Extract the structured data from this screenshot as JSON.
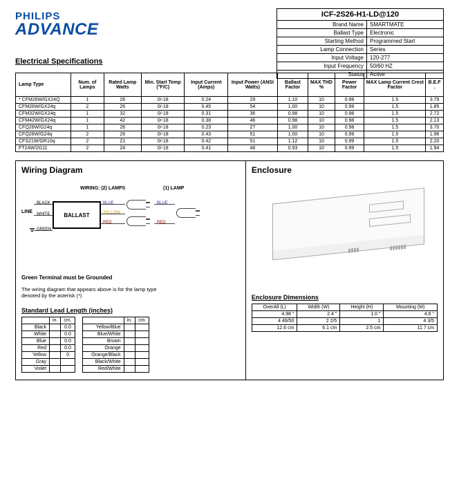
{
  "brand": {
    "top": "PHILIPS",
    "bottom": "ADVANCE"
  },
  "section_title": "Electrical Specifications",
  "model": "ICF-2S26-H1-LD@120",
  "info": [
    {
      "k": "Brand Name",
      "v": "SMARTMATE"
    },
    {
      "k": "Ballast Type",
      "v": "Electronic"
    },
    {
      "k": "Starting Method",
      "v": "Programmed Start"
    },
    {
      "k": "Lamp Connection",
      "v": "Series"
    },
    {
      "k": "Input Voltage",
      "v": "120-277"
    },
    {
      "k": "Input Frequency",
      "v": "50/60 HZ"
    },
    {
      "k": "Status",
      "v": "Active"
    }
  ],
  "spec": {
    "cols": [
      "Lamp Type",
      "Num. of Lamps",
      "Rated Lamp Watts",
      "Min. Start Temp (°F/C)",
      "Input Current (Amps)",
      "Input Power (ANSI Watts)",
      "Ballast Factor",
      "MAX THD %",
      "Power Factor",
      "MAX Lamp Current Crest Factor",
      "B.E.F ."
    ],
    "rows": [
      [
        "* CFM26W/GX24Q",
        "1",
        "26",
        "0/-18",
        "0.24",
        "29",
        "1.10",
        "10",
        "0.98",
        "1.5",
        "3.79"
      ],
      [
        "CFM26W/GX24q",
        "2",
        "26",
        "0/-18",
        "0.45",
        "54",
        "1.00",
        "10",
        "0.99",
        "1.5",
        "1.85"
      ],
      [
        "CFM32W/GX24q",
        "1",
        "32",
        "0/-18",
        "0.31",
        "36",
        "0.98",
        "10",
        "0.98",
        "1.5",
        "2.72"
      ],
      [
        "CFM42W/GX24q",
        "1",
        "42",
        "0/-18",
        "0.38",
        "46",
        "0.98",
        "10",
        "0.98",
        "1.5",
        "2.13"
      ],
      [
        "CFQ26W/G24q",
        "1",
        "26",
        "0/-18",
        "0.23",
        "27",
        "1.00",
        "10",
        "0.98",
        "1.5",
        "3.70"
      ],
      [
        "CFQ26W/G24q",
        "2",
        "26",
        "0/-18",
        "0.43",
        "51",
        "1.00",
        "10",
        "0.99",
        "1.5",
        "1.96"
      ],
      [
        "CFS21W/GR10q",
        "2",
        "21",
        "0/-18",
        "0.42",
        "51",
        "1.12",
        "10",
        "0.99",
        "1.5",
        "2.20"
      ],
      [
        "FT24W/2G11",
        "2",
        "24",
        "0/-18",
        "0.41",
        "48",
        "0.93",
        "10",
        "0.99",
        "1.5",
        "1.94"
      ]
    ]
  },
  "wiring": {
    "title": "Wiring Diagram",
    "hdr_left": "WIRING: (2) LAMPS",
    "hdr_right": "(1) LAMP",
    "ballast": "BALLAST",
    "line": "LINE",
    "in_black": "BLACK",
    "in_white": "WHITE",
    "in_green": "GREEN",
    "out_blue": "BLUE",
    "out_yellow": "YELLOW",
    "out_red": "RED",
    "ground_note": "Green Terminal must be Grounded",
    "asterisk_note": "The wiring diagram that appears above is for the lamp type denoted by the asterisk (*)"
  },
  "leads": {
    "title": "Standard Lead Length (inches)",
    "hdr": [
      "",
      "in.",
      "cm."
    ],
    "left": [
      [
        "Black",
        "",
        "0.0"
      ],
      [
        "White",
        "",
        "0.0"
      ],
      [
        "Blue",
        "",
        "0.0"
      ],
      [
        "Red",
        "",
        "0.0"
      ],
      [
        "Yellow",
        "",
        "0"
      ],
      [
        "Gray",
        "",
        ""
      ],
      [
        "Violet",
        "",
        ""
      ]
    ],
    "right_hdr": [
      "",
      "in.",
      "cm."
    ],
    "right": [
      [
        "Yellow/Blue",
        "",
        ""
      ],
      [
        "Blue/White",
        "",
        ""
      ],
      [
        "Brown",
        "",
        ""
      ],
      [
        "Orange",
        "",
        ""
      ],
      [
        "Orange/Black",
        "",
        ""
      ],
      [
        "Black/White",
        "",
        ""
      ],
      [
        "Red/White",
        "",
        ""
      ]
    ]
  },
  "encl": {
    "title": "Enclosure",
    "sub": "Enclosure Dimensions",
    "cols": [
      "OverAll (L)",
      "Width (W)",
      "Height (H)",
      "Mounting (M)"
    ],
    "rows": [
      [
        "4.98 \"",
        "2.4 \"",
        "1.0 \"",
        "4.6 \""
      ],
      [
        "4 49/50",
        "2 2/5",
        "1",
        "4 3/5"
      ],
      [
        "12.6 cm",
        "6.1 cm",
        "2.5 cm",
        "11.7 cm"
      ]
    ]
  }
}
